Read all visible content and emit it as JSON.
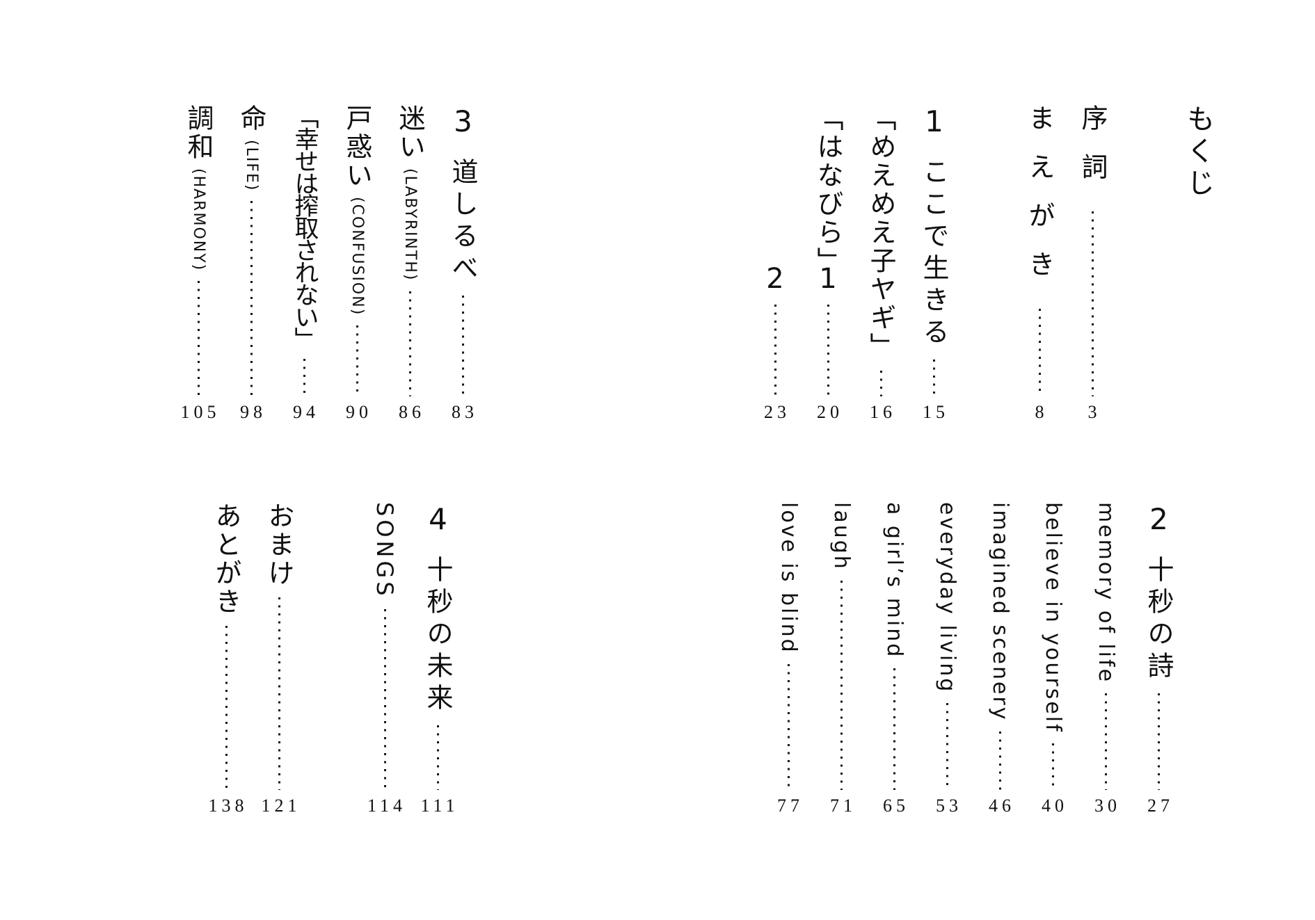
{
  "document": {
    "heading": "もくじ",
    "ink_color": "#101010",
    "background": "#ffffff"
  },
  "blocks": {
    "top_right": {
      "entries": [
        {
          "heading": true,
          "title": "もくじ"
        },
        {
          "spacer": true
        },
        {
          "title": "序詞",
          "loose": true,
          "page": "3"
        },
        {
          "title": "まえがき",
          "loose": true,
          "page": "8"
        },
        {
          "spacer": true
        },
        {
          "num": "1",
          "title": "ここで生きる",
          "section": true,
          "page": "15"
        },
        {
          "title": "「めえめえ子ヤギ」",
          "page": "16"
        },
        {
          "title": "「はなびら」",
          "fixed": true,
          "tail": "1",
          "page": "20"
        },
        {
          "title": "",
          "fixed": true,
          "tail": "2",
          "page": "23"
        }
      ]
    },
    "top_left": {
      "entries": [
        {
          "num": "3",
          "title": "道しるべ",
          "section": true,
          "page": "83"
        },
        {
          "title": "迷い",
          "latin": "(LABYRINTH)",
          "page": "86"
        },
        {
          "title": "戸惑い",
          "latin": "(CONFUSION)",
          "page": "90"
        },
        {
          "title": "「幸せは搾取されない」",
          "tight": true,
          "page": "94"
        },
        {
          "title": "命",
          "latin": "(LIFE)",
          "page": "98"
        },
        {
          "title": "調和",
          "latin": "(HARMONY)",
          "page": "105"
        }
      ]
    },
    "bottom_right": {
      "entries": [
        {
          "num": "2",
          "title": "十秒の詩",
          "section": true,
          "page": "27"
        },
        {
          "title": "memory of life",
          "latin_title": true,
          "page": "30"
        },
        {
          "title": "believe in yourself",
          "latin_title": true,
          "page": "40"
        },
        {
          "title": "imagined scenery",
          "latin_title": true,
          "page": "46"
        },
        {
          "title": "everyday living",
          "latin_title": true,
          "page": "53"
        },
        {
          "title": "a girl’s mind",
          "latin_title": true,
          "page": "65"
        },
        {
          "title": "laugh",
          "latin_title": true,
          "page": "71"
        },
        {
          "title": "love is blind",
          "latin_title": true,
          "page": "77"
        }
      ]
    },
    "bottom_left": {
      "entries": [
        {
          "num": "4",
          "title": "十秒の未来",
          "section": true,
          "page": "111"
        },
        {
          "title": "SONGS",
          "latin_upper": true,
          "page": "114"
        },
        {
          "spacer": true
        },
        {
          "title": "おまけ",
          "page": "121"
        },
        {
          "title": "あとがき",
          "page": "138"
        }
      ]
    }
  }
}
